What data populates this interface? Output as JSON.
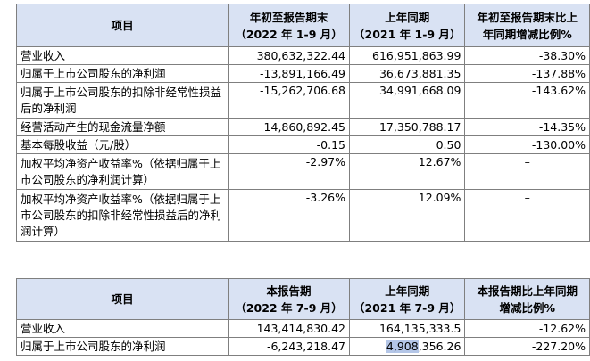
{
  "table1": {
    "headers": {
      "item": "项目",
      "col1_line1": "年初至报告期末",
      "col1_line2": "（2022 年 1-9 月）",
      "col2_line1": "上年同期",
      "col2_line2": "（2021 年 1-9 月）",
      "col3_line1": "年初至报告期末比上",
      "col3_line2": "年同期增减比例%"
    },
    "rows": [
      {
        "label": "营业收入",
        "current": "380,632,322.44",
        "prior": "616,951,863.99",
        "change": "-38.30%"
      },
      {
        "label": "归属于上市公司股东的净利润",
        "current": "-13,891,166.49",
        "prior": "36,673,881.35",
        "change": "-137.88%"
      },
      {
        "label": "归属于上市公司股东的扣除非经常性损益后的净利润",
        "current": "-15,262,706.68",
        "prior": "34,991,668.09",
        "change": "-143.62%"
      },
      {
        "label": "经营活动产生的现金流量净额",
        "current": "14,860,892.45",
        "prior": "17,350,788.17",
        "change": "-14.35%"
      },
      {
        "label": "基本每股收益（元/股）",
        "current": "-0.15",
        "prior": "0.50",
        "change": "-130.00%"
      },
      {
        "label": "加权平均净资产收益率%（依据归属于上市公司股东的净利润计算）",
        "current": "-2.97%",
        "prior": "12.67%",
        "change": "–"
      },
      {
        "label": "加权平均净资产收益率%（依据归属于上市公司股东的扣除非经常性损益后的净利润计算）",
        "current": "-3.26%",
        "prior": "12.09%",
        "change": "–"
      }
    ]
  },
  "table2": {
    "headers": {
      "item": "项目",
      "col1_line1": "本报告期",
      "col1_line2": "（2022 年 7-9 月）",
      "col2_line1": "上年同期",
      "col2_line2": "（2021 年 7-9 月）",
      "col3_line1": "本报告期比上年同期",
      "col3_line2": "增减比例%"
    },
    "rows": [
      {
        "label": "营业收入",
        "current": "143,414,830.42",
        "prior": "164,135,333.5",
        "change": "-12.62%"
      },
      {
        "label": "归属于上市公司股东的净利润",
        "current": "-6,243,218.47",
        "prior_highlight": "4,908",
        "prior_rest": ",356.26",
        "change": "-227.20%"
      }
    ]
  }
}
